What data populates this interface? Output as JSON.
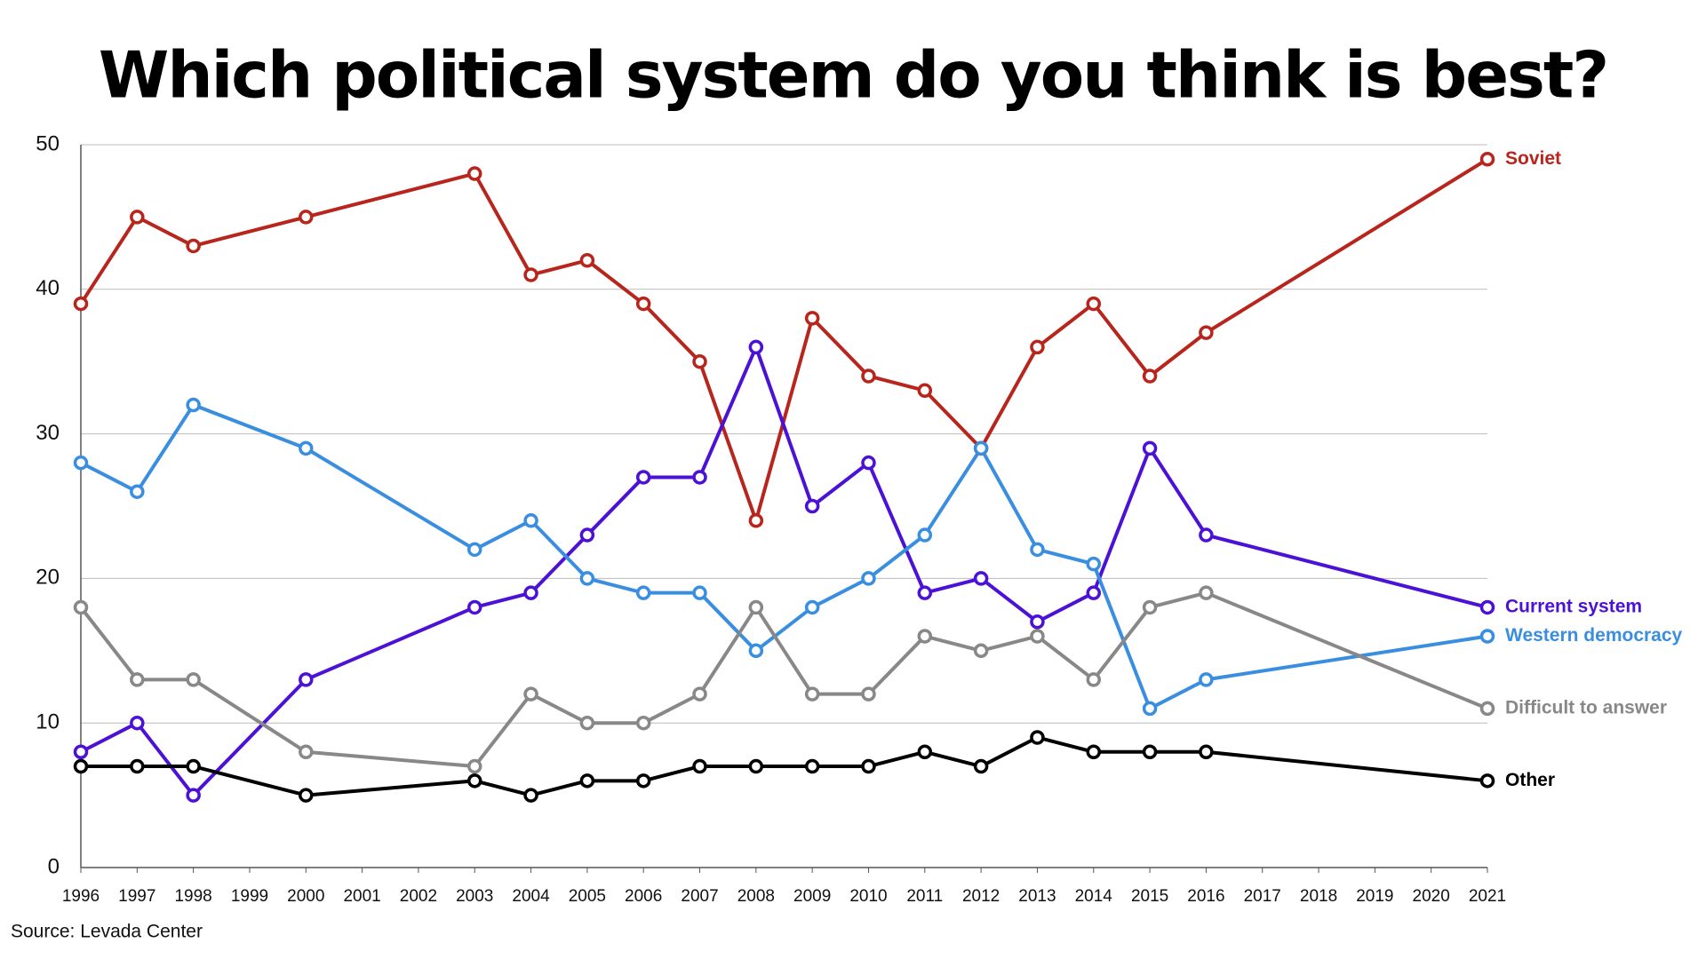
{
  "chart_data": {
    "type": "line",
    "title": "Which political system do you think is best?",
    "source": "Source: Levada Center",
    "x": [
      1996,
      1997,
      1998,
      2000,
      2003,
      2004,
      2005,
      2006,
      2007,
      2008,
      2009,
      2010,
      2011,
      2012,
      2013,
      2014,
      2015,
      2016,
      2021
    ],
    "series": [
      {
        "name": "Soviet",
        "color": "#b8251c",
        "values": [
          39,
          45,
          43,
          45,
          48,
          41,
          42,
          39,
          35,
          24,
          38,
          34,
          33,
          29,
          36,
          39,
          34,
          37,
          49
        ]
      },
      {
        "name": "Current system",
        "color": "#4b12d6",
        "values": [
          8,
          10,
          5,
          13,
          18,
          19,
          23,
          27,
          27,
          36,
          25,
          28,
          19,
          20,
          17,
          19,
          29,
          23,
          18
        ]
      },
      {
        "name": "Western democracy",
        "color": "#3a8ee0",
        "values": [
          28,
          26,
          32,
          29,
          22,
          24,
          20,
          19,
          19,
          15,
          18,
          20,
          23,
          29,
          22,
          21,
          11,
          13,
          16
        ]
      },
      {
        "name": "Difficult to answer",
        "color": "#888888",
        "values": [
          18,
          13,
          13,
          8,
          7,
          12,
          10,
          10,
          12,
          18,
          12,
          12,
          16,
          15,
          16,
          13,
          18,
          19,
          11
        ]
      },
      {
        "name": "Other",
        "color": "#000000",
        "values": [
          7,
          7,
          7,
          5,
          6,
          5,
          6,
          6,
          7,
          7,
          7,
          7,
          8,
          7,
          9,
          8,
          8,
          8,
          6
        ]
      }
    ],
    "xlim": [
      1996,
      2021
    ],
    "xticks": [
      1996,
      1997,
      1998,
      1999,
      2000,
      2001,
      2002,
      2003,
      2004,
      2005,
      2006,
      2007,
      2008,
      2009,
      2010,
      2011,
      2012,
      2013,
      2014,
      2015,
      2016,
      2017,
      2018,
      2019,
      2020,
      2021
    ],
    "ylim": [
      0,
      50
    ],
    "yticks": [
      0,
      10,
      20,
      30,
      40,
      50
    ],
    "grid": true
  }
}
